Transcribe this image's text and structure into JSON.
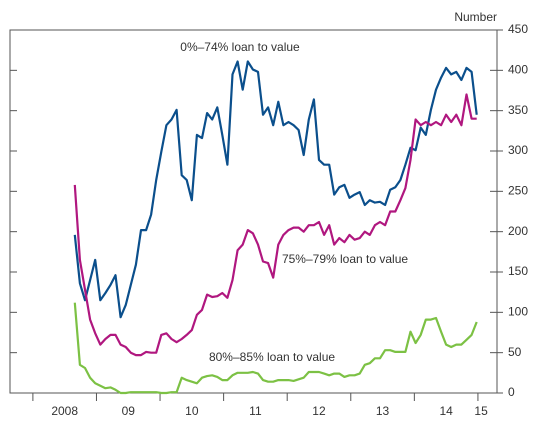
{
  "chart_data": {
    "type": "line",
    "y_axis_title": "Number",
    "x": [
      2008.66,
      2008.74,
      2008.82,
      2008.9,
      2008.98,
      2009.06,
      2009.14,
      2009.22,
      2009.3,
      2009.38,
      2009.46,
      2009.54,
      2009.62,
      2009.7,
      2009.78,
      2009.86,
      2009.94,
      2010.02,
      2010.1,
      2010.18,
      2010.26,
      2010.34,
      2010.42,
      2010.5,
      2010.58,
      2010.66,
      2010.74,
      2010.82,
      2010.9,
      2010.98,
      2011.06,
      2011.14,
      2011.22,
      2011.3,
      2011.38,
      2011.46,
      2011.54,
      2011.62,
      2011.7,
      2011.78,
      2011.86,
      2011.94,
      2012.02,
      2012.1,
      2012.18,
      2012.26,
      2012.34,
      2012.42,
      2012.5,
      2012.58,
      2012.66,
      2012.74,
      2012.82,
      2012.9,
      2012.98,
      2013.06,
      2013.14,
      2013.22,
      2013.3,
      2013.38,
      2013.46,
      2013.54,
      2013.62,
      2013.7,
      2013.78,
      2013.86,
      2013.94,
      2014.02,
      2014.1,
      2014.18,
      2014.26,
      2014.34,
      2014.42,
      2014.5,
      2014.58,
      2014.66,
      2014.74,
      2014.82,
      2014.9,
      2014.98
    ],
    "series": [
      {
        "name": "0%–74% loan to value",
        "color": "#0b4f8c",
        "values": [
          196,
          136,
          115,
          140,
          165,
          115,
          124,
          134,
          146,
          94,
          109,
          134,
          159,
          202,
          202,
          221,
          264,
          299,
          332,
          339,
          351,
          270,
          264,
          239,
          320,
          316,
          347,
          339,
          354,
          320,
          283,
          395,
          411,
          376,
          411,
          401,
          398,
          345,
          354,
          332,
          361,
          332,
          336,
          332,
          326,
          295,
          339,
          364,
          289,
          283,
          283,
          246,
          255,
          258,
          242,
          246,
          249,
          233,
          239,
          236,
          237,
          233,
          252,
          255,
          264,
          283,
          304,
          301,
          329,
          320,
          351,
          376,
          391,
          403,
          395,
          398,
          388,
          403,
          398,
          345
        ]
      },
      {
        "name": "75%–79% loan to value",
        "color": "#b0177f",
        "values": [
          258,
          165,
          128,
          91,
          74,
          60,
          67,
          72,
          72,
          60,
          57,
          50,
          47,
          47,
          51,
          50,
          50,
          72,
          74,
          67,
          63,
          67,
          72,
          78,
          97,
          103,
          122,
          119,
          120,
          124,
          118,
          140,
          177,
          184,
          202,
          198,
          184,
          163,
          161,
          143,
          184,
          196,
          202,
          205,
          205,
          200,
          208,
          208,
          212,
          196,
          208,
          184,
          192,
          187,
          196,
          190,
          192,
          200,
          196,
          208,
          212,
          208,
          225,
          225,
          239,
          254,
          289,
          339,
          332,
          336,
          332,
          336,
          332,
          345,
          336,
          345,
          332,
          370,
          340,
          340
        ]
      },
      {
        "name": "80%–85% loan to value",
        "color": "#7cc144",
        "values": [
          112,
          35,
          31,
          19,
          12,
          9,
          6,
          7,
          4,
          0,
          0,
          1,
          1,
          1,
          1,
          1,
          1,
          0,
          0,
          1,
          1,
          19,
          16,
          14,
          12,
          19,
          21,
          22,
          20,
          16,
          16,
          22,
          25,
          25,
          25,
          26,
          24,
          16,
          14,
          14,
          16,
          16,
          16,
          15,
          17,
          19,
          26,
          26,
          26,
          24,
          22,
          24,
          24,
          20,
          22,
          22,
          24,
          35,
          37,
          43,
          43,
          53,
          53,
          51,
          51,
          51,
          76,
          62,
          72,
          91,
          91,
          93,
          76,
          60,
          57,
          60,
          60,
          66,
          72,
          88
        ]
      }
    ],
    "xlim": [
      2007.64,
      2015.3
    ],
    "xtick_marks": [
      2008,
      2009,
      2010,
      2011,
      2012,
      2013,
      2014,
      2015
    ],
    "xticks": [
      {
        "value": 2008.5,
        "label": "2008"
      },
      {
        "value": 2009.5,
        "label": "09"
      },
      {
        "value": 2010.5,
        "label": "10"
      },
      {
        "value": 2011.5,
        "label": "11"
      },
      {
        "value": 2012.5,
        "label": "12"
      },
      {
        "value": 2013.5,
        "label": "13"
      },
      {
        "value": 2014.5,
        "label": "14"
      },
      {
        "value": 2015.05,
        "label": "15"
      }
    ],
    "ylim": [
      0,
      450
    ],
    "yticks": [
      0,
      50,
      100,
      150,
      200,
      250,
      300,
      350,
      400,
      450
    ],
    "y_axis_side": "right",
    "grid": false
  }
}
